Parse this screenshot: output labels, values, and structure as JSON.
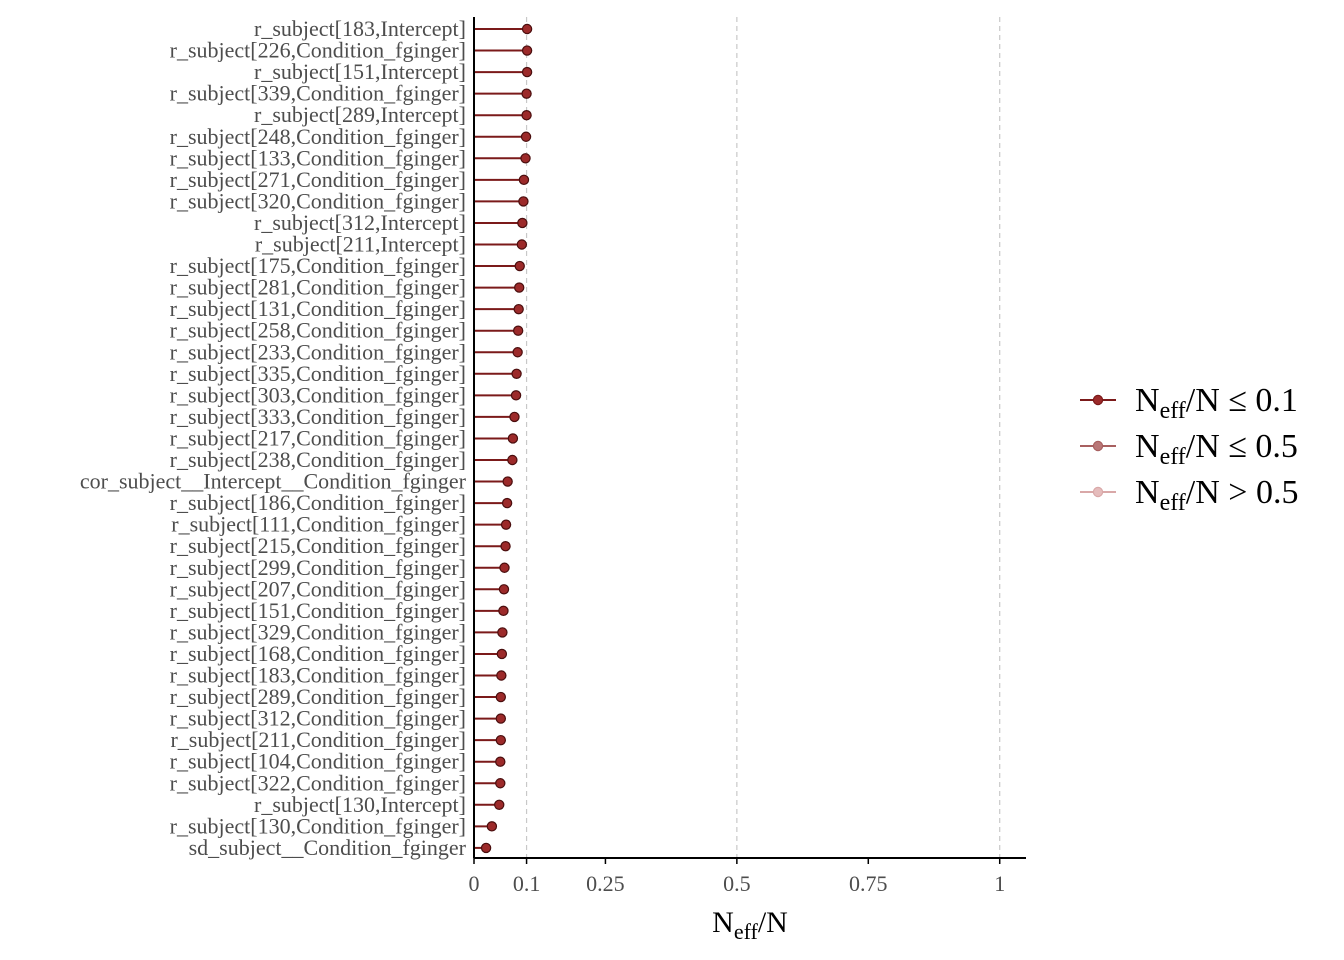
{
  "chart_data": {
    "type": "lollipop",
    "xlabel": {
      "base": "N",
      "sub": "eff",
      "suffix": "/N"
    },
    "xlim": [
      0,
      1.05
    ],
    "x_ticks": [
      0,
      0.1,
      0.25,
      0.5,
      0.75,
      1
    ],
    "x_tick_labels": [
      "0",
      "0.1",
      "0.25",
      "0.5",
      "0.75",
      "1"
    ],
    "vertical_gridlines_at": [
      0.1,
      0.5,
      1
    ],
    "legend": {
      "position": "right",
      "entries": [
        {
          "base": "N",
          "sub": "eff",
          "suffix": "/N ≤ 0.1",
          "color": "#7b1a1a",
          "point_fill": "#9c2a2a"
        },
        {
          "base": "N",
          "sub": "eff",
          "suffix": "/N ≤ 0.5",
          "color": "#a86060",
          "point_fill": "#b97777"
        },
        {
          "base": "N",
          "sub": "eff",
          "suffix": "/N > 0.5",
          "color": "#d9a8a8",
          "point_fill": "#e5bcbc"
        }
      ]
    },
    "colors": {
      "stem": "#7b1a1a",
      "point_fill": "#9c2a2a",
      "point_stroke": "#4a0e0e",
      "grid": "#c8c8c8",
      "axis": "#000000"
    },
    "parameters": [
      "r_subject[183,Intercept]",
      "r_subject[226,Condition_fginger]",
      "r_subject[151,Intercept]",
      "r_subject[339,Condition_fginger]",
      "r_subject[289,Intercept]",
      "r_subject[248,Condition_fginger]",
      "r_subject[133,Condition_fginger]",
      "r_subject[271,Condition_fginger]",
      "r_subject[320,Condition_fginger]",
      "r_subject[312,Intercept]",
      "r_subject[211,Intercept]",
      "r_subject[175,Condition_fginger]",
      "r_subject[281,Condition_fginger]",
      "r_subject[131,Condition_fginger]",
      "r_subject[258,Condition_fginger]",
      "r_subject[233,Condition_fginger]",
      "r_subject[335,Condition_fginger]",
      "r_subject[303,Condition_fginger]",
      "r_subject[333,Condition_fginger]",
      "r_subject[217,Condition_fginger]",
      "r_subject[238,Condition_fginger]",
      "cor_subject__Intercept__Condition_fginger",
      "r_subject[186,Condition_fginger]",
      "r_subject[111,Condition_fginger]",
      "r_subject[215,Condition_fginger]",
      "r_subject[299,Condition_fginger]",
      "r_subject[207,Condition_fginger]",
      "r_subject[151,Condition_fginger]",
      "r_subject[329,Condition_fginger]",
      "r_subject[168,Condition_fginger]",
      "r_subject[183,Condition_fginger]",
      "r_subject[289,Condition_fginger]",
      "r_subject[312,Condition_fginger]",
      "r_subject[211,Condition_fginger]",
      "r_subject[104,Condition_fginger]",
      "r_subject[322,Condition_fginger]",
      "r_subject[130,Intercept]",
      "r_subject[130,Condition_fginger]",
      "sd_subject__Condition_fginger"
    ],
    "values": [
      0.101,
      0.101,
      0.101,
      0.1,
      0.1,
      0.099,
      0.098,
      0.095,
      0.094,
      0.092,
      0.091,
      0.087,
      0.086,
      0.085,
      0.084,
      0.083,
      0.081,
      0.08,
      0.077,
      0.074,
      0.073,
      0.064,
      0.063,
      0.061,
      0.06,
      0.058,
      0.057,
      0.056,
      0.054,
      0.053,
      0.052,
      0.051,
      0.051,
      0.051,
      0.05,
      0.05,
      0.048,
      0.034,
      0.023
    ]
  }
}
